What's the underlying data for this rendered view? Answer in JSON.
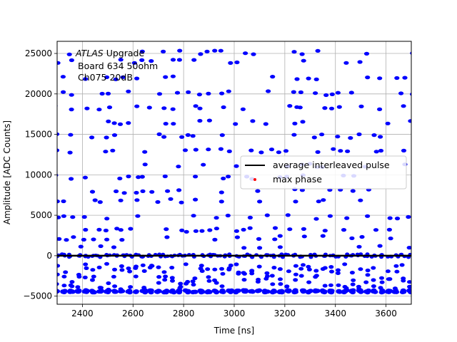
{
  "chart_data": {
    "type": "scatter",
    "xlabel": "Time [ns]",
    "ylabel": "Amplitude [ADC Counts]",
    "xlim": [
      2300,
      3700
    ],
    "ylim": [
      -6000,
      26500
    ],
    "xticks": [
      2400,
      2600,
      2800,
      3000,
      3200,
      3400,
      3600
    ],
    "yticks": [
      -5000,
      0,
      5000,
      10000,
      15000,
      20000,
      25000
    ],
    "grid": true,
    "annotation": {
      "line1_italic": "ATLAS",
      "line1_rest": " Upgrade",
      "line2": "Board 634 50ohm",
      "line3": "Ch075 20dB"
    },
    "legend": {
      "placement": "center-right",
      "entries": [
        {
          "label": "average interleaved pulse",
          "marker": "line",
          "color": "#000000"
        },
        {
          "label": "max phase",
          "marker": "dot",
          "color": "#ff0000"
        }
      ]
    },
    "series": [
      {
        "label_ref": "samples",
        "color": "#0000ff",
        "kind": "scatter",
        "baseline": 0,
        "floor": -4400,
        "column_start": 2300,
        "column_step": 28.5,
        "levels": [
          25100,
          24000,
          22000,
          20100,
          18300,
          16500,
          14800,
          13000,
          11200,
          9700,
          8000,
          6800,
          4800,
          3200,
          2200,
          1100
        ]
      },
      {
        "label_ref": "average interleaved pulse",
        "color": "#000000",
        "kind": "line",
        "x": [
          2300,
          3700
        ],
        "y": [
          0,
          0
        ]
      }
    ]
  }
}
